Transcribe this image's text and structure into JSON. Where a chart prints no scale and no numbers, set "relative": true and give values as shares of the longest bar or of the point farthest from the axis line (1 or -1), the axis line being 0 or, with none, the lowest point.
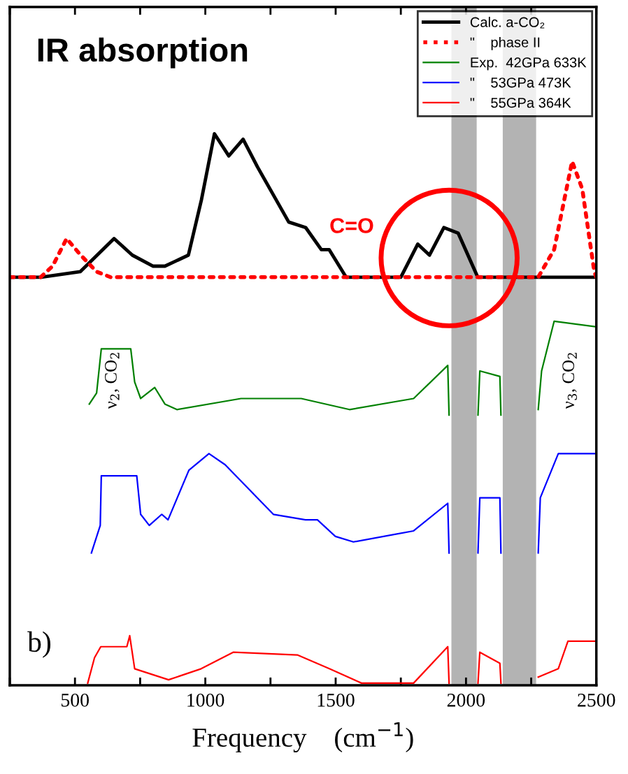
{
  "chart_data": {
    "type": "line",
    "title": "IR absorption",
    "xlabel": "Frequency    (cm$^{−1}$)",
    "relative": true,
    "xlim": [
      250,
      2500
    ],
    "xticks": [
      {
        "value": 250,
        "label": null
      },
      500,
      {
        "value": 750,
        "label": null
      },
      1000,
      {
        "value": 1250,
        "label": null
      },
      1500,
      {
        "value": 1750,
        "label": null
      },
      2000,
      {
        "value": 2250,
        "label": null
      },
      2500
    ],
    "legend": "top right",
    "grid": false,
    "series": [
      {
        "name": "Calc. a-CO₂",
        "color": "#000000",
        "line_style": "solid",
        "x": [
          250,
          370,
          520,
          585,
          650,
          720,
          800,
          845,
          890,
          935,
          985,
          1035,
          1090,
          1145,
          1200,
          1260,
          1320,
          1385,
          1445,
          1475,
          1540,
          1570,
          1750,
          1815,
          1860,
          1915,
          1970,
          2045,
          2075,
          2500
        ],
        "values": [
          0.74,
          0.74,
          0.75,
          0.78,
          0.81,
          0.78,
          0.76,
          0.76,
          0.77,
          0.78,
          0.88,
          1.0,
          0.96,
          0.99,
          0.94,
          0.89,
          0.84,
          0.83,
          0.79,
          0.79,
          0.74,
          0.74,
          0.74,
          0.8,
          0.78,
          0.83,
          0.82,
          0.74,
          0.74,
          0.74
        ]
      },
      {
        "name": "\"    phase II",
        "color": "#ff0000",
        "line_style": "dotted",
        "x": [
          250,
          368,
          414,
          468,
          522,
          583,
          637,
          2277,
          2338,
          2407,
          2446,
          2492,
          2500
        ],
        "values": [
          0.74,
          0.74,
          0.76,
          0.81,
          0.78,
          0.75,
          0.74,
          0.74,
          0.79,
          0.95,
          0.9,
          0.75,
          0.74
        ]
      },
      {
        "name": "Exp.  42GPa 633K",
        "color": "#008000",
        "line_style": "solid",
        "x": [
          555,
          583,
          601,
          714,
          729,
          752,
          806,
          845,
          891,
          1137,
          1368,
          1553,
          1799,
          1930,
          1935,
          2000,
          2046,
          2053,
          2130,
          2134,
          2200,
          2277,
          2290,
          2338,
          2500
        ],
        "values": [
          0.51,
          0.53,
          0.61,
          0.61,
          0.55,
          0.52,
          0.54,
          0.51,
          0.5,
          0.52,
          0.52,
          0.5,
          0.52,
          0.58,
          0.49,
          null,
          0.49,
          0.57,
          0.56,
          0.49,
          null,
          0.5,
          0.57,
          0.66,
          0.65
        ]
      },
      {
        "name": "\"    53GPa 473K",
        "color": "#0000ff",
        "line_style": "solid",
        "x": [
          563,
          597,
          601,
          737,
          752,
          785,
          833,
          857,
          937,
          1014,
          1076,
          1261,
          1384,
          1430,
          1499,
          1568,
          1799,
          1930,
          1935,
          2000,
          2046,
          2053,
          2130,
          2134,
          2200,
          2277,
          2285,
          2354,
          2500
        ],
        "values": [
          0.24,
          0.29,
          0.38,
          0.38,
          0.31,
          0.29,
          0.31,
          0.3,
          0.39,
          0.42,
          0.4,
          0.31,
          0.3,
          0.3,
          0.27,
          0.26,
          0.28,
          0.33,
          0.24,
          null,
          0.24,
          0.34,
          0.34,
          0.24,
          null,
          0.24,
          0.34,
          0.42,
          0.42
        ]
      },
      {
        "name": "\"    55GPa 364K",
        "color": "#ff0000",
        "line_style": "solid",
        "x": [
          549,
          575,
          599,
          699,
          710,
          729,
          859,
          984,
          1107,
          1353,
          1476,
          1599,
          1799,
          1930,
          1935,
          2000,
          2046,
          2053,
          2130,
          2134,
          2200,
          2277,
          2354,
          2391,
          2500
        ],
        "values": [
          0.004,
          0.05,
          0.07,
          0.07,
          0.09,
          0.03,
          0.01,
          0.03,
          0.06,
          0.055,
          0.03,
          0.004,
          0.004,
          0.07,
          0.004,
          null,
          0.004,
          0.06,
          0.04,
          0.004,
          null,
          0.015,
          0.03,
          0.08,
          0.08
        ]
      }
    ],
    "bands": [
      {
        "axis": "x",
        "from": 1944,
        "to": 2041,
        "color": "#808080"
      },
      {
        "axis": "x",
        "from": 2141,
        "to": 2269,
        "color": "#808080"
      }
    ],
    "annotations": [
      "C=O",
      "ν$_{2}$, CO$_{2}$",
      "ν$_{3}$, CO$_{2}$",
      "b)"
    ]
  }
}
